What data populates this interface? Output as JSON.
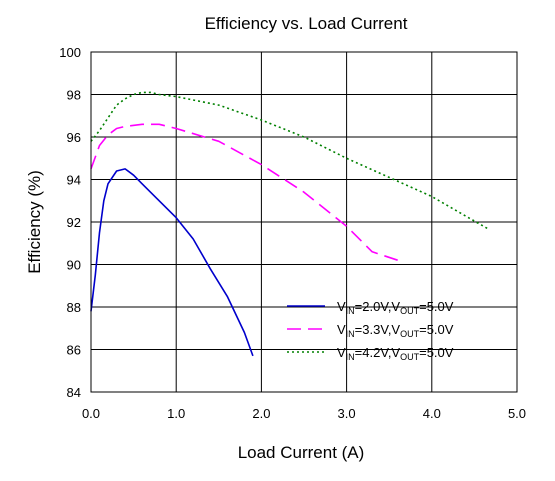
{
  "chart_data": {
    "type": "line",
    "title": "Efficiency vs. Load Current",
    "xlabel": "Load Current  (A)",
    "ylabel": "Efficiency (%)",
    "xlim": [
      0.0,
      5.0
    ],
    "ylim": [
      84,
      100
    ],
    "xticks": [
      0.0,
      1.0,
      2.0,
      3.0,
      4.0,
      5.0
    ],
    "xtick_labels": [
      "0.0",
      "1.0",
      "2.0",
      "3.0",
      "4.0",
      "5.0"
    ],
    "yticks": [
      84,
      86,
      88,
      90,
      92,
      94,
      96,
      98,
      100
    ],
    "ytick_labels": [
      "84",
      "86",
      "88",
      "90",
      "92",
      "94",
      "96",
      "98",
      "100"
    ],
    "grid": true,
    "legend_position": "bottom-right",
    "series": [
      {
        "label_main": "V",
        "label_sub1": "IN",
        "label_mid": "=2.0V,V",
        "label_sub2": "OUT",
        "label_end": "=5.0V",
        "color": "#0000cc",
        "dash": "solid",
        "x": [
          0.0,
          0.05,
          0.1,
          0.15,
          0.2,
          0.3,
          0.4,
          0.5,
          0.6,
          0.8,
          1.0,
          1.2,
          1.4,
          1.6,
          1.8,
          1.9
        ],
        "y": [
          87.8,
          89.5,
          91.5,
          93.0,
          93.8,
          94.4,
          94.5,
          94.2,
          93.8,
          93.0,
          92.2,
          91.2,
          89.8,
          88.5,
          86.8,
          85.7
        ]
      },
      {
        "label_main": "V",
        "label_sub1": "IN",
        "label_mid": "=3.3V,V",
        "label_sub2": "OUT",
        "label_end": "=5.0V",
        "color": "#ff00ff",
        "dash": "dashed",
        "x": [
          0.0,
          0.1,
          0.2,
          0.3,
          0.4,
          0.6,
          0.8,
          1.0,
          1.5,
          2.0,
          2.5,
          3.0,
          3.3,
          3.6
        ],
        "y": [
          94.5,
          95.6,
          96.1,
          96.4,
          96.5,
          96.6,
          96.6,
          96.4,
          95.8,
          94.7,
          93.4,
          91.8,
          90.6,
          90.2
        ]
      },
      {
        "label_main": "V",
        "label_sub1": "IN",
        "label_mid": "=4.2V,V",
        "label_sub2": "OUT",
        "label_end": "=5.0V",
        "color": "#008000",
        "dash": "dotted",
        "x": [
          0.0,
          0.1,
          0.2,
          0.3,
          0.4,
          0.5,
          0.6,
          0.7,
          0.8,
          1.0,
          1.5,
          2.0,
          2.5,
          3.0,
          3.5,
          4.0,
          4.65
        ],
        "y": [
          95.8,
          96.3,
          96.9,
          97.5,
          97.8,
          98.0,
          98.1,
          98.1,
          98.0,
          97.9,
          97.5,
          96.8,
          96.0,
          95.0,
          94.1,
          93.2,
          91.7
        ]
      }
    ]
  }
}
